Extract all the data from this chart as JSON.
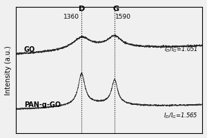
{
  "title": "",
  "xlabel": "",
  "ylabel": "Intensity (a.u.)",
  "x_range": [
    900,
    2200
  ],
  "go_label": "GO",
  "pan_label": "PAN-g-GO",
  "go_ratio": "$I_D$/$I_G$=1.051",
  "pan_ratio": "$I_D$/$I_G$=1.565",
  "D_peak": 1360,
  "G_peak": 1590,
  "D_label": "D",
  "G_label": "G",
  "bg_color": "#f0f0f0",
  "line_color": "#2a2a2a",
  "go_baseline": 0.72,
  "pan_baseline": 0.22,
  "go_peak_amp": 0.1,
  "pan_peak_amp": 0.28
}
